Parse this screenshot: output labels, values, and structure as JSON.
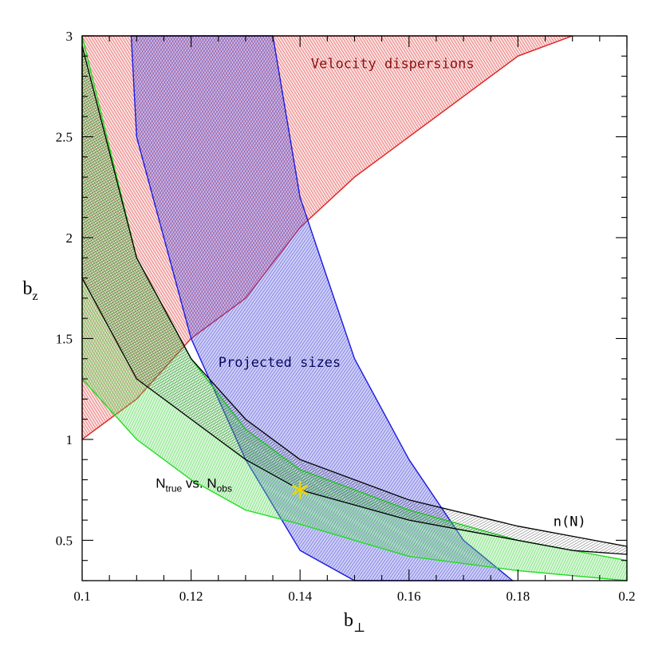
{
  "chart_data": {
    "type": "area",
    "title": "",
    "xlabel": {
      "base": "b",
      "sub": "⊥"
    },
    "ylabel": {
      "base": "b",
      "sub": "z"
    },
    "xlim": [
      0.1,
      0.2
    ],
    "ylim": [
      0.3,
      3.0
    ],
    "xticks": [
      0.1,
      0.12,
      0.14,
      0.16,
      0.18,
      0.2
    ],
    "xtick_labels": [
      "0.1",
      "0.12",
      "0.14",
      "0.16",
      "0.18",
      "0.2"
    ],
    "yticks": [
      0.5,
      1,
      1.5,
      2,
      2.5,
      3
    ],
    "ytick_labels": [
      "0.5",
      "1",
      "1.5",
      "2",
      "2.5",
      "3"
    ],
    "grid": false,
    "legend": "none",
    "series": [
      {
        "id": "vel",
        "name": "Velocity dispersions",
        "color": "#e02020",
        "polygon": [
          [
            0.1,
            3.0
          ],
          [
            0.19,
            3.0
          ],
          [
            0.18,
            2.9
          ],
          [
            0.15,
            2.3
          ],
          [
            0.14,
            2.05
          ],
          [
            0.13,
            1.7
          ],
          [
            0.12,
            1.5
          ],
          [
            0.11,
            1.2
          ],
          [
            0.1,
            1.0
          ]
        ]
      },
      {
        "id": "proj",
        "name": "Projected sizes",
        "color": "#1a1ae0",
        "polygon": [
          [
            0.109,
            3.0
          ],
          [
            0.135,
            3.0
          ],
          [
            0.14,
            2.2
          ],
          [
            0.145,
            1.8
          ],
          [
            0.15,
            1.4
          ],
          [
            0.16,
            0.9
          ],
          [
            0.17,
            0.5
          ],
          [
            0.179,
            0.3
          ],
          [
            0.15,
            0.3
          ],
          [
            0.14,
            0.45
          ],
          [
            0.13,
            0.9
          ],
          [
            0.12,
            1.5
          ],
          [
            0.11,
            2.5
          ]
        ]
      },
      {
        "id": "nn",
        "name": "n(N)",
        "color": "#000000",
        "polygon": [
          [
            0.1,
            2.95
          ],
          [
            0.11,
            1.9
          ],
          [
            0.12,
            1.4
          ],
          [
            0.13,
            1.1
          ],
          [
            0.14,
            0.9
          ],
          [
            0.16,
            0.7
          ],
          [
            0.18,
            0.57
          ],
          [
            0.2,
            0.47
          ],
          [
            0.2,
            0.43
          ],
          [
            0.19,
            0.45
          ],
          [
            0.17,
            0.55
          ],
          [
            0.16,
            0.6
          ],
          [
            0.14,
            0.75
          ],
          [
            0.13,
            0.9
          ],
          [
            0.12,
            1.1
          ],
          [
            0.11,
            1.3
          ],
          [
            0.1,
            1.8
          ]
        ]
      },
      {
        "id": "ntrue",
        "name": "N_true vs. N_obs",
        "color": "#22dd22",
        "polygon": [
          [
            0.1,
            3.0
          ],
          [
            0.11,
            1.9
          ],
          [
            0.12,
            1.4
          ],
          [
            0.13,
            1.05
          ],
          [
            0.14,
            0.85
          ],
          [
            0.16,
            0.65
          ],
          [
            0.18,
            0.5
          ],
          [
            0.2,
            0.4
          ],
          [
            0.2,
            0.3
          ],
          [
            0.18,
            0.35
          ],
          [
            0.16,
            0.42
          ],
          [
            0.15,
            0.5
          ],
          [
            0.14,
            0.58
          ],
          [
            0.13,
            0.65
          ],
          [
            0.12,
            0.8
          ],
          [
            0.11,
            1.0
          ],
          [
            0.1,
            1.3
          ]
        ]
      }
    ],
    "annotations": [
      {
        "id": "vel",
        "text": "Velocity dispersions",
        "x": 0.142,
        "y": 2.84,
        "color": "#8a1010"
      },
      {
        "id": "proj",
        "text": "Projected sizes",
        "x": 0.125,
        "y": 1.36,
        "color": "#0a0a60"
      },
      {
        "id": "nn",
        "text": "n(N)",
        "x": 0.1865,
        "y": 0.57,
        "color": "#000000"
      }
    ],
    "ntrue_label": {
      "N": "N",
      "sub1": "true",
      "mid": " vs. N",
      "sub2": "obs",
      "x": 0.1135,
      "y": 0.76
    },
    "marker": {
      "symbol": "star",
      "x": 0.14,
      "y": 0.75,
      "color": "#f2d200"
    }
  }
}
